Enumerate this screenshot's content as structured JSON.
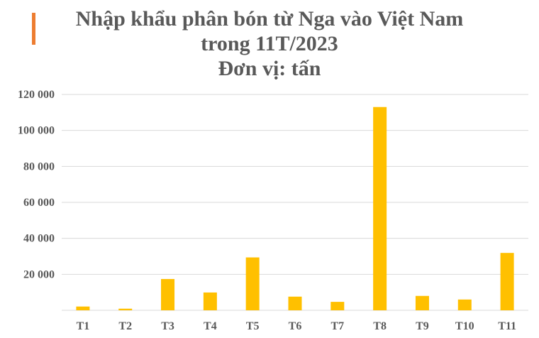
{
  "chart_data": {
    "type": "bar",
    "title": "Nhập khẩu phân bón từ Nga vào Việt Nam",
    "title_line2": "trong 11T/2023",
    "subtitle": "Đơn vị: tấn",
    "categories": [
      "T1",
      "T2",
      "T3",
      "T4",
      "T5",
      "T6",
      "T7",
      "T8",
      "T9",
      "T10",
      "T11"
    ],
    "values": [
      2100,
      900,
      17400,
      9900,
      29400,
      7600,
      4700,
      113000,
      8000,
      6000,
      31900
    ],
    "ylim": [
      0,
      120000
    ],
    "yticks": [
      0,
      20000,
      40000,
      60000,
      80000,
      100000,
      120000
    ],
    "ytick_labels": [
      "",
      "20 000",
      "40 000",
      "60 000",
      "80 000",
      "100 000",
      "120 000"
    ],
    "grid": true,
    "legend": "none",
    "colors": {
      "bar": "#FFC000",
      "grid": "#D9D9D9",
      "text": "#595959",
      "accent": "#ED7D31"
    }
  }
}
